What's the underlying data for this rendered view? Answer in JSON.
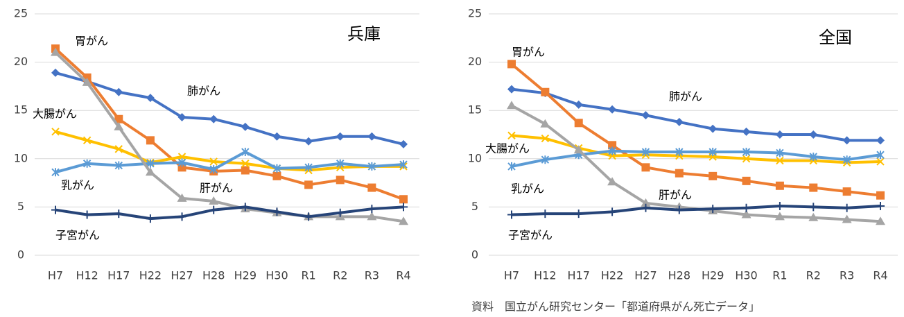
{
  "chart_data": [
    {
      "type": "line",
      "title": "兵庫",
      "categories": [
        "H7",
        "H12",
        "H17",
        "H22",
        "H27",
        "H28",
        "H29",
        "H30",
        "R1",
        "R2",
        "R3",
        "R4"
      ],
      "ylim": [
        0,
        25
      ],
      "yticks": [
        0,
        5,
        10,
        15,
        20,
        25
      ],
      "grid": true,
      "series": [
        {
          "name": "肺がん",
          "color": "#4472c4",
          "marker": "diamond",
          "values": [
            18.9,
            18.0,
            16.9,
            16.3,
            14.3,
            14.1,
            13.3,
            12.3,
            11.8,
            12.3,
            12.3,
            11.5
          ]
        },
        {
          "name": "胃がん",
          "color": "#ed7d31",
          "marker": "square",
          "values": [
            21.4,
            18.4,
            14.1,
            11.9,
            9.1,
            8.7,
            8.8,
            8.2,
            7.3,
            7.8,
            7.0,
            5.8
          ]
        },
        {
          "name": "大腸がん",
          "color": "#ffc000",
          "marker": "x",
          "values": [
            12.8,
            11.9,
            11.0,
            9.6,
            10.2,
            9.7,
            9.5,
            9.0,
            8.8,
            9.1,
            9.2,
            9.2
          ]
        },
        {
          "name": "乳がん",
          "color": "#5b9bd5",
          "marker": "asterisk",
          "values": [
            8.6,
            9.5,
            9.3,
            9.5,
            9.6,
            8.9,
            10.7,
            9.0,
            9.1,
            9.5,
            9.2,
            9.4
          ]
        },
        {
          "name": "肝がん",
          "color": "#a5a5a5",
          "marker": "triangle",
          "values": [
            21.0,
            17.9,
            13.3,
            8.6,
            5.9,
            5.6,
            4.8,
            4.4,
            4.0,
            4.0,
            4.0,
            3.5
          ]
        },
        {
          "name": "子宮がん",
          "color": "#264478",
          "marker": "plus",
          "values": [
            4.7,
            4.2,
            4.3,
            3.8,
            4.0,
            4.7,
            5.0,
            4.5,
            4.0,
            4.4,
            4.8,
            5.0
          ]
        }
      ]
    },
    {
      "type": "line",
      "title": "全国",
      "categories": [
        "H7",
        "H12",
        "H17",
        "H22",
        "H27",
        "H28",
        "H29",
        "H30",
        "R1",
        "R2",
        "R3",
        "R4"
      ],
      "ylim": [
        0,
        25
      ],
      "yticks": [
        0,
        5,
        10,
        15,
        20,
        25
      ],
      "grid": true,
      "series": [
        {
          "name": "肺がん",
          "color": "#4472c4",
          "marker": "diamond",
          "values": [
            17.2,
            16.8,
            15.6,
            15.1,
            14.5,
            13.8,
            13.1,
            12.8,
            12.5,
            12.5,
            11.9,
            11.9
          ]
        },
        {
          "name": "胃がん",
          "color": "#ed7d31",
          "marker": "square",
          "values": [
            19.8,
            16.9,
            13.7,
            11.4,
            9.1,
            8.5,
            8.2,
            7.7,
            7.2,
            7.0,
            6.6,
            6.2
          ]
        },
        {
          "name": "大腸がん",
          "color": "#ffc000",
          "marker": "x",
          "values": [
            12.4,
            12.1,
            11.1,
            10.3,
            10.4,
            10.3,
            10.2,
            10.0,
            9.8,
            9.8,
            9.6,
            9.7
          ]
        },
        {
          "name": "乳がん",
          "color": "#5b9bd5",
          "marker": "asterisk",
          "values": [
            9.2,
            9.9,
            10.4,
            10.8,
            10.7,
            10.7,
            10.7,
            10.7,
            10.6,
            10.2,
            9.9,
            10.4
          ]
        },
        {
          "name": "肝がん",
          "color": "#a5a5a5",
          "marker": "triangle",
          "values": [
            15.5,
            13.6,
            10.9,
            7.6,
            5.4,
            5.0,
            4.6,
            4.2,
            4.0,
            3.9,
            3.7,
            3.5
          ]
        },
        {
          "name": "子宮がん",
          "color": "#264478",
          "marker": "plus",
          "values": [
            4.2,
            4.3,
            4.3,
            4.5,
            4.9,
            4.7,
            4.8,
            4.9,
            5.1,
            5.0,
            4.9,
            5.1
          ]
        }
      ]
    }
  ],
  "source": "資料　国立がん研究センター「都道府県がん死亡データ」"
}
